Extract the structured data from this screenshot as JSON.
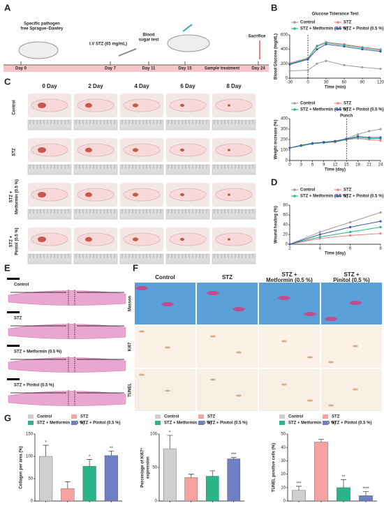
{
  "panels": [
    "A",
    "B",
    "C",
    "D",
    "E",
    "F",
    "G"
  ],
  "panel_A": {
    "notes": [
      "Specific pathogen",
      "free Sprague–Dawley",
      "I.V STZ (65 mg/mL)",
      "Blood",
      "sugar test",
      "Sacrifice"
    ],
    "days": [
      "Day 0",
      "Day 7",
      "Day 11",
      "Day 15",
      "Sample treatment",
      "Day 24"
    ]
  },
  "panel_C": {
    "columns": [
      "0 Day",
      "2 Day",
      "4 Day",
      "6 Day",
      "8 Day"
    ],
    "rows": [
      [
        "Control"
      ],
      [
        "STZ"
      ],
      [
        "STZ +",
        "Metformin (0.5 %)"
      ],
      [
        "STZ +",
        "Pinitol (0.5 %)"
      ]
    ]
  },
  "panel_E": {
    "labels": [
      "Control",
      "STZ",
      "STZ + Metformin (0.5 %)",
      "STZ + Pinitol (0.5 %)"
    ]
  },
  "panel_F": {
    "columns": [
      [
        "Control"
      ],
      [
        "STZ"
      ],
      [
        "STZ +",
        "Metformin (0.5 %)"
      ],
      [
        "STZ +",
        "Pinitol (0.5 %)"
      ]
    ],
    "rows": [
      "Masson",
      "Ki67",
      "TUNEL"
    ]
  },
  "chart_data": [
    {
      "type": "line",
      "title": "Glucose Tolerance Test",
      "xlabel": "Time (min)",
      "ylabel": "Blood Glucose (mg/dL)",
      "x": [
        -30,
        0,
        15,
        30,
        60,
        90,
        120
      ],
      "xlim": [
        -30,
        120
      ],
      "xticks": [
        -30,
        0,
        30,
        60,
        90,
        120
      ],
      "ylim": [
        0,
        600
      ],
      "yticks": [
        0,
        200,
        400,
        600
      ],
      "vline": {
        "x": 0
      },
      "series": [
        {
          "name": "Control",
          "color": "#a0a0a0",
          "values": [
            100,
            110,
            200,
            240,
            180,
            150,
            130
          ]
        },
        {
          "name": "STZ",
          "color": "#f08080",
          "values": [
            210,
            280,
            450,
            500,
            470,
            430,
            400
          ]
        },
        {
          "name": "STZ + Metformin (0.5 %)",
          "color": "#2bb38a",
          "values": [
            200,
            270,
            440,
            490,
            460,
            420,
            390
          ]
        },
        {
          "name": "STZ + Pinitol (0.5 %)",
          "color": "#3c5aa6",
          "values": [
            190,
            260,
            400,
            470,
            440,
            400,
            370
          ]
        }
      ]
    },
    {
      "type": "line",
      "xlabel": "Time (day)",
      "ylabel": "Weight increase (%)",
      "x": [
        0,
        3,
        6,
        9,
        12,
        15,
        18,
        21,
        24
      ],
      "xlim": [
        0,
        24
      ],
      "xticks": [
        0,
        3,
        6,
        9,
        12,
        15,
        18,
        21,
        24
      ],
      "ylim": [
        0,
        400
      ],
      "yticks": [
        0,
        100,
        200,
        300,
        400
      ],
      "vline": {
        "x": 15,
        "label": "Punch"
      },
      "series": [
        {
          "name": "Control",
          "color": "#a0a0a0",
          "values": [
            120,
            140,
            160,
            175,
            185,
            210,
            250,
            280,
            300
          ]
        },
        {
          "name": "STZ",
          "color": "#f08080",
          "values": [
            120,
            140,
            160,
            170,
            175,
            200,
            210,
            200,
            190
          ]
        },
        {
          "name": "STZ + Metformin (0.5 %)",
          "color": "#2bb38a",
          "values": [
            120,
            140,
            160,
            170,
            180,
            200,
            220,
            210,
            210
          ]
        },
        {
          "name": "STZ + Pinitol (0.5 %)",
          "color": "#3c5aa6",
          "values": [
            120,
            145,
            165,
            175,
            185,
            205,
            230,
            220,
            220
          ]
        }
      ]
    },
    {
      "type": "line",
      "xlabel": "Time (day)",
      "ylabel": "Wound healing (%)",
      "x": [
        2,
        4,
        6,
        8
      ],
      "xlim": [
        2,
        8
      ],
      "xticks": [
        2,
        4,
        6,
        8
      ],
      "ylim": [
        0,
        80
      ],
      "yticks": [
        0,
        20,
        40,
        60,
        80
      ],
      "series": [
        {
          "name": "Control",
          "color": "#a0a0a0",
          "values": [
            0,
            25,
            45,
            65
          ]
        },
        {
          "name": "STZ",
          "color": "#f08080",
          "values": [
            0,
            12,
            18,
            22
          ]
        },
        {
          "name": "STZ + Metformin (0.5 %)",
          "color": "#2bb38a",
          "values": [
            0,
            15,
            25,
            35
          ]
        },
        {
          "name": "STZ + Pinitol (0.5 %)",
          "color": "#3c5aa6",
          "values": [
            0,
            20,
            35,
            47
          ]
        }
      ]
    },
    {
      "type": "bar",
      "ylabel": "Collagen per area (%)",
      "categories": [
        null,
        null,
        null,
        null
      ],
      "legend": [
        "Control",
        "STZ",
        "STZ + Metformin (0.5 %)",
        "STZ + Pinitol (0.5 %)"
      ],
      "colors": [
        "#cfcfcf",
        "#f7a1a1",
        "#2bb38a",
        "#6f7fc4"
      ],
      "values": [
        100,
        28,
        78,
        102
      ],
      "errors": [
        25,
        15,
        15,
        10
      ],
      "annotations": [
        "*",
        null,
        "*",
        "**"
      ],
      "ylim": [
        0,
        150
      ],
      "yticks": [
        0,
        50,
        100,
        150
      ]
    },
    {
      "type": "bar",
      "ylabel": [
        "Percentage of Ki67⁺",
        "expression"
      ],
      "categories": [
        null,
        null,
        null,
        null
      ],
      "legend": [
        "Control",
        "STZ",
        "STZ + Metformin (0.5 %)",
        "STZ + Pinitol (0.5 %)"
      ],
      "colors": [
        "#cfcfcf",
        "#f7a1a1",
        "#2bb38a",
        "#6f7fc4"
      ],
      "values": [
        78,
        35,
        37,
        63
      ],
      "errors": [
        20,
        5,
        8,
        2
      ],
      "annotations": [
        "*",
        null,
        null,
        "***"
      ],
      "ylim": [
        0,
        100
      ],
      "yticks": [
        0,
        50,
        100
      ]
    },
    {
      "type": "bar",
      "ylabel": "TUNEL positive cells (%)",
      "categories": [
        null,
        null,
        null,
        null
      ],
      "legend": [
        "Control",
        "STZ",
        "STZ + Metformin (0.5 %)",
        "STZ + Pinitol (0.5 %)"
      ],
      "colors": [
        "#cfcfcf",
        "#f7a1a1",
        "#2bb38a",
        "#6f7fc4"
      ],
      "values": [
        8,
        44,
        10,
        4
      ],
      "errors": [
        3,
        2,
        6,
        3
      ],
      "annotations": [
        "***",
        null,
        "**",
        "****"
      ],
      "ylim": [
        0,
        50
      ],
      "yticks": [
        0,
        10,
        20,
        30,
        40,
        50
      ]
    }
  ]
}
